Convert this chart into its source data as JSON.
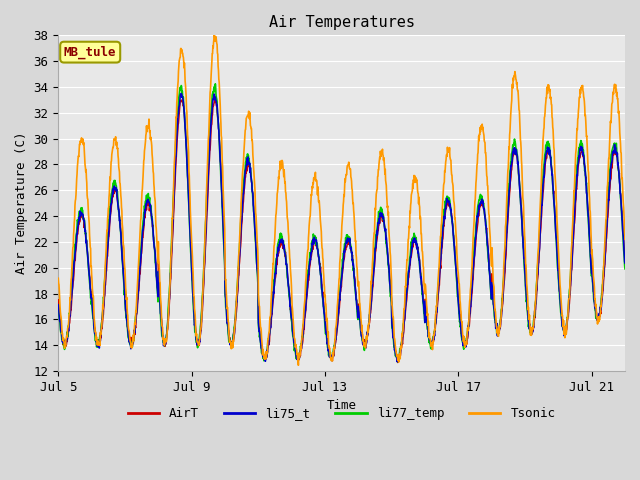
{
  "title": "Air Temperatures",
  "xlabel": "Time",
  "ylabel": "Air Temperature (C)",
  "ylim": [
    12,
    38
  ],
  "yticks": [
    12,
    14,
    16,
    18,
    20,
    22,
    24,
    26,
    28,
    30,
    32,
    34,
    36,
    38
  ],
  "xtick_labels": [
    "Jul 5",
    "Jul 9",
    "Jul 13",
    "Jul 17",
    "Jul 21"
  ],
  "xtick_positions": [
    0,
    4,
    8,
    12,
    16
  ],
  "colors": {
    "AirT": "#cc0000",
    "li75_t": "#0000cc",
    "li77_temp": "#00cc00",
    "Tsonic": "#ff9900"
  },
  "annotation_text": "MB_tule",
  "annotation_color": "#8b0000",
  "annotation_bg": "#ffff99",
  "annotation_edge": "#999900",
  "fig_bg": "#d8d8d8",
  "plot_bg": "#e8e8e8",
  "grid_color": "#ffffff",
  "num_days": 17,
  "samples_per_day": 96,
  "day_amp_base": [
    10,
    12,
    11,
    19,
    19,
    14,
    9,
    9,
    9,
    10,
    9,
    11,
    11,
    14,
    14,
    14,
    13
  ],
  "day_amp_tsonic": [
    16,
    16,
    17,
    23,
    24,
    18,
    15,
    14,
    15,
    15,
    14,
    15,
    17,
    20,
    19,
    19,
    18
  ],
  "day_min_base": [
    14,
    14,
    14,
    14,
    14,
    14,
    13,
    13,
    13,
    14,
    13,
    14,
    14,
    15,
    15,
    15,
    16
  ],
  "day_min_tsonic": [
    14,
    14,
    14,
    14,
    14,
    14,
    13,
    13,
    13,
    14,
    13,
    14,
    14,
    15,
    15,
    15,
    16
  ]
}
